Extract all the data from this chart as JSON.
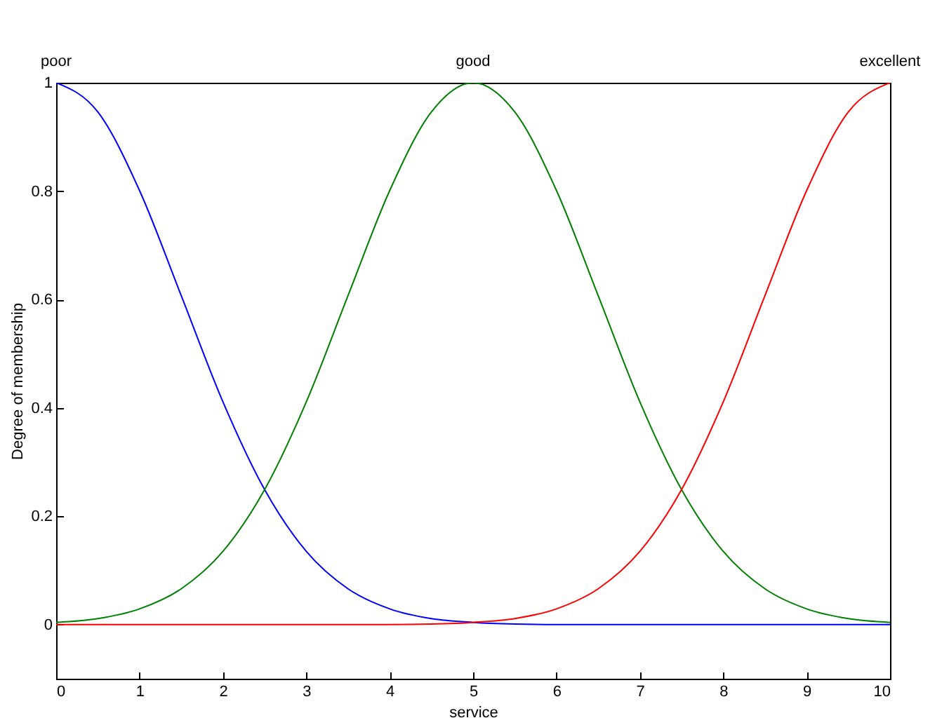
{
  "chart_data": {
    "type": "line",
    "xlabel": "service",
    "ylabel": "Degree of membership",
    "x": [
      0,
      0.5,
      1,
      1.5,
      2,
      2.5,
      3,
      3.5,
      4,
      4.5,
      5,
      5.5,
      6,
      6.5,
      7,
      7.5,
      8,
      8.5,
      9,
      9.5,
      10
    ],
    "series": [
      {
        "name": "poor",
        "color": "#0000ff",
        "values": [
          1,
          0.946,
          0.801,
          0.607,
          0.411,
          0.249,
          0.135,
          0.066,
          0.029,
          0.011,
          0.004,
          0.001,
          0,
          0,
          0,
          0,
          0,
          0,
          0,
          0,
          0
        ]
      },
      {
        "name": "good",
        "color": "#008000",
        "values": [
          0.004,
          0.011,
          0.029,
          0.066,
          0.135,
          0.249,
          0.411,
          0.607,
          0.801,
          0.946,
          1,
          0.946,
          0.801,
          0.607,
          0.411,
          0.249,
          0.135,
          0.066,
          0.029,
          0.011,
          0.004
        ]
      },
      {
        "name": "excellent",
        "color": "#ff0000",
        "values": [
          0,
          0,
          0,
          0,
          0,
          0,
          0,
          0,
          0,
          0.001,
          0.004,
          0.011,
          0.029,
          0.066,
          0.135,
          0.249,
          0.411,
          0.607,
          0.801,
          0.946,
          1
        ]
      }
    ],
    "xlim": [
      0,
      10
    ],
    "xticks": [
      0,
      1,
      2,
      3,
      4,
      5,
      6,
      7,
      8,
      9,
      10
    ],
    "ylim": [
      -0.1,
      1
    ],
    "yticks": [
      0,
      0.2,
      0.4,
      0.6,
      0.8,
      1
    ],
    "grid": false,
    "legend": false,
    "marker": "none",
    "line_style": "solid"
  }
}
